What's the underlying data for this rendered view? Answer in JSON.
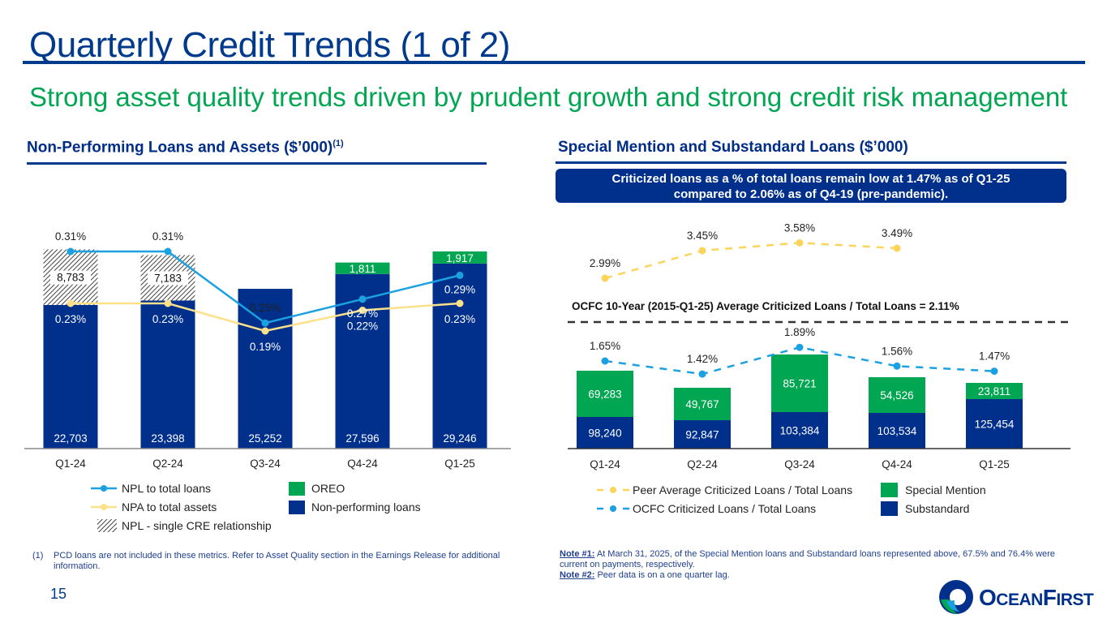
{
  "header": {
    "title": "Quarterly Credit Trends (1 of 2)",
    "subtitle": "Strong asset quality trends driven by prudent growth and strong credit risk management"
  },
  "left_section": {
    "title": "Non-Performing Loans and Assets ($’000)",
    "title_sup": "(1)",
    "legend": {
      "npl_ratio": "NPL to total loans",
      "npa_ratio": "NPA to total assets",
      "single_cre": "NPL - single CRE relationship",
      "oreo": "OREO",
      "npl": "Non-performing loans"
    },
    "footnote_num": "(1)",
    "footnote": "PCD loans are not included in these metrics. Refer to Asset Quality section in the Earnings Release for additional information."
  },
  "right_section": {
    "title": "Special Mention and Substandard Loans ($’000)",
    "callout_line1": "Criticized loans as a % of total loans remain low at  1.47% as of Q1-25",
    "callout_line2": "compared to 2.06% as of Q4-19 (pre-pandemic).",
    "avg_label": "OCFC 10-Year (2015-Q1-25) Average Criticized Loans / Total Loans = 2.11%",
    "legend": {
      "peer": "Peer Average Criticized Loans / Total Loans",
      "ocfc": "OCFC Criticized Loans / Total Loans",
      "special": "Special Mention",
      "substandard": "Substandard"
    },
    "note1_label": "Note #1:",
    "note1": " At March 31, 2025, of the Special Mention loans and Substandard loans represented above, 67.5% and 76.4% were current on payments, respectively.",
    "note2_label": "Note #2:",
    "note2": " Peer data is on a one quarter lag."
  },
  "footer": {
    "page_number": "15",
    "logo_text_big1": "O",
    "logo_text_small1": "CEAN",
    "logo_text_big2": "F",
    "logo_text_small2": "IRST"
  },
  "colors": {
    "navy": "#00308c",
    "green": "#00a651",
    "lightblue": "#1ba1e2",
    "yellow": "#fde18a",
    "peer_yellow": "#fcd45c",
    "title_blue": "#003a8c"
  },
  "chart_data": [
    {
      "type": "bar",
      "title": "Non-Performing Loans and Assets ($’000)",
      "stacked": true,
      "categories": [
        "Q1-24",
        "Q2-24",
        "Q3-24",
        "Q4-24",
        "Q1-25"
      ],
      "series": [
        {
          "name": "Non-performing loans",
          "values": [
            22703,
            23398,
            25252,
            27596,
            29246
          ],
          "labels": [
            "22,703",
            "23,398",
            "25,252",
            "27,596",
            "29,246"
          ]
        },
        {
          "name": "NPL - single CRE relationship",
          "values": [
            8783,
            7183,
            null,
            null,
            null
          ],
          "labels": [
            "8,783",
            "7,183",
            "",
            "",
            ""
          ]
        },
        {
          "name": "OREO",
          "values": [
            null,
            null,
            null,
            1811,
            1917
          ],
          "labels": [
            "",
            "",
            "",
            "1,811",
            "1,917"
          ]
        }
      ],
      "lines": [
        {
          "name": "NPL to total loans",
          "values": [
            0.31,
            0.31,
            0.25,
            0.27,
            0.29
          ],
          "labels": [
            "0.31%",
            "0.31%",
            "0.25%",
            "0.27%",
            "0.29%"
          ]
        },
        {
          "name": "NPA to total assets",
          "values": [
            0.23,
            0.23,
            0.19,
            0.22,
            0.23
          ],
          "labels": [
            "0.23%",
            "0.23%",
            "0.19%",
            "0.22%",
            "0.23%"
          ]
        }
      ],
      "legend_placement": "bottom"
    },
    {
      "type": "bar",
      "title": "Special Mention and Substandard Loans ($’000)",
      "stacked": true,
      "categories": [
        "Q1-24",
        "Q2-24",
        "Q3-24",
        "Q4-24",
        "Q1-25"
      ],
      "series": [
        {
          "name": "Substandard",
          "values": [
            98240,
            92847,
            103384,
            103534,
            125454
          ],
          "labels": [
            "98,240",
            "92,847",
            "103,384",
            "103,534",
            "125,454"
          ]
        },
        {
          "name": "Special Mention",
          "values": [
            69283,
            49767,
            85721,
            54526,
            23811
          ],
          "labels": [
            "69,283",
            "49,767",
            "85,721",
            "54,526",
            "23,811"
          ]
        }
      ],
      "lines": [
        {
          "name": "Peer Average Criticized Loans / Total Loans",
          "values": [
            2.99,
            3.45,
            3.58,
            3.49,
            null
          ],
          "labels": [
            "2.99%",
            "3.45%",
            "3.58%",
            "3.49%",
            ""
          ],
          "style": "dashed"
        },
        {
          "name": "OCFC Criticized Loans / Total Loans",
          "values": [
            1.65,
            1.42,
            1.89,
            1.56,
            1.47
          ],
          "labels": [
            "1.65%",
            "1.42%",
            "1.89%",
            "1.56%",
            "1.47%"
          ],
          "style": "dashed"
        }
      ],
      "reference_line": {
        "name": "OCFC 10-Year Average",
        "value": 2.11,
        "style": "dashed"
      },
      "legend_placement": "bottom"
    }
  ]
}
